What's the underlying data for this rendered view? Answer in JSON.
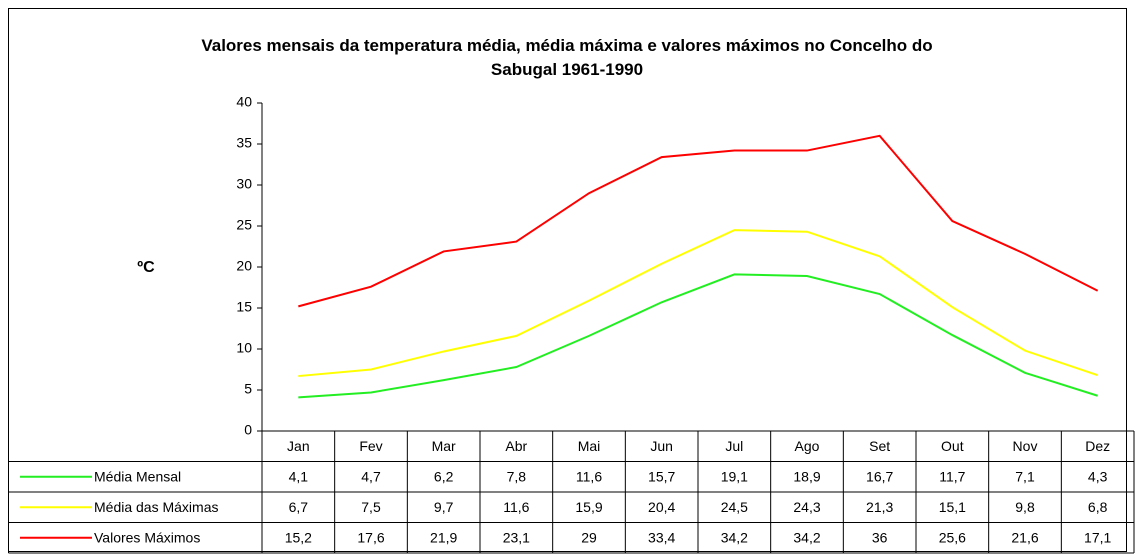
{
  "chart_data": {
    "type": "line",
    "title": "Valores mensais da temperatura média, média máxima e valores máximos no Concelho do Sabugal 1961-1990",
    "y_label": "ºC",
    "categories": [
      "Jan",
      "Fev",
      "Mar",
      "Abr",
      "Mai",
      "Jun",
      "Jul",
      "Ago",
      "Set",
      "Out",
      "Nov",
      "Dez"
    ],
    "ylim": [
      0,
      40
    ],
    "yticks": [
      0,
      5,
      10,
      15,
      20,
      25,
      30,
      35,
      40
    ],
    "grid": false,
    "series": [
      {
        "name": "Média Mensal",
        "color": "#22ee22",
        "values": [
          4.1,
          4.7,
          6.2,
          7.8,
          11.6,
          15.7,
          19.1,
          18.9,
          16.7,
          11.7,
          7.1,
          4.3
        ],
        "value_labels": [
          "4,1",
          "4,7",
          "6,2",
          "7,8",
          "11,6",
          "15,7",
          "19,1",
          "18,9",
          "16,7",
          "11,7",
          "7,1",
          "4,3"
        ]
      },
      {
        "name": "Média das Máximas",
        "color": "#ffff00",
        "values": [
          6.7,
          7.5,
          9.7,
          11.6,
          15.9,
          20.4,
          24.5,
          24.3,
          21.3,
          15.1,
          9.8,
          6.8
        ],
        "value_labels": [
          "6,7",
          "7,5",
          "9,7",
          "11,6",
          "15,9",
          "20,4",
          "24,5",
          "24,3",
          "21,3",
          "15,1",
          "9,8",
          "6,8"
        ]
      },
      {
        "name": "Valores Máximos",
        "color": "#ff0000",
        "values": [
          15.2,
          17.6,
          21.9,
          23.1,
          29,
          33.4,
          34.2,
          34.2,
          36,
          25.6,
          21.6,
          17.1
        ],
        "value_labels": [
          "15,2",
          "17,6",
          "21,9",
          "23,1",
          "29",
          "33,4",
          "34,2",
          "34,2",
          "36",
          "25,6",
          "21,6",
          "17,1"
        ]
      }
    ]
  }
}
